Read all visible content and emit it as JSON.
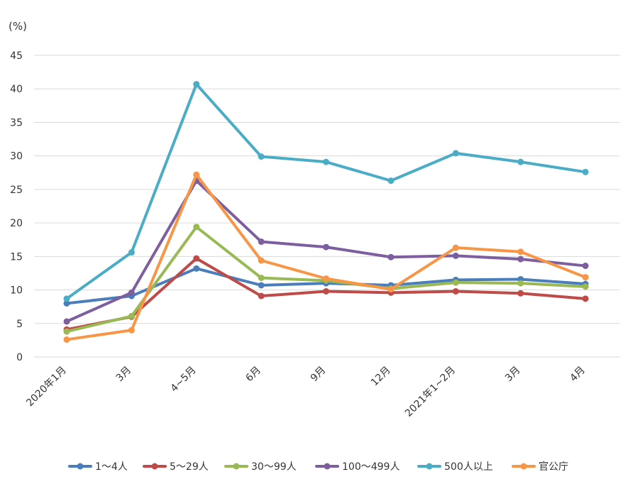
{
  "chart_data": {
    "type": "line",
    "title": "",
    "xlabel": "",
    "ylabel": "(%)",
    "ylim": [
      0,
      45
    ],
    "yticks": [
      0,
      5,
      10,
      15,
      20,
      25,
      30,
      35,
      40,
      45
    ],
    "grid": true,
    "legend_position": "bottom",
    "categories": [
      "2020年1月",
      "3月",
      "4~5月",
      "6月",
      "9月",
      "12月",
      "2021年1~2月",
      "3月",
      "4月"
    ],
    "series": [
      {
        "name": "1～4人",
        "color": "#4a7ebb",
        "values": [
          8.0,
          9.1,
          13.2,
          10.7,
          11.0,
          10.7,
          11.5,
          11.6,
          10.9
        ]
      },
      {
        "name": "5～29人",
        "color": "#be4b48",
        "values": [
          4.1,
          6.0,
          14.7,
          9.1,
          9.8,
          9.6,
          9.8,
          9.5,
          8.7
        ]
      },
      {
        "name": "30～99人",
        "color": "#98b954",
        "values": [
          3.8,
          6.1,
          19.4,
          11.8,
          11.4,
          10.2,
          11.1,
          11.0,
          10.5
        ]
      },
      {
        "name": "100～499人",
        "color": "#7d5fa0",
        "values": [
          5.3,
          9.6,
          26.3,
          17.2,
          16.4,
          14.9,
          15.1,
          14.6,
          13.6
        ]
      },
      {
        "name": "500人以上",
        "color": "#4bacc6",
        "values": [
          8.7,
          15.6,
          40.7,
          29.9,
          29.1,
          26.3,
          30.4,
          29.1,
          27.6
        ]
      },
      {
        "name": "官公庁",
        "color": "#f79646",
        "values": [
          2.6,
          4.0,
          27.2,
          14.4,
          11.7,
          10.1,
          16.3,
          15.7,
          11.9
        ]
      }
    ]
  }
}
